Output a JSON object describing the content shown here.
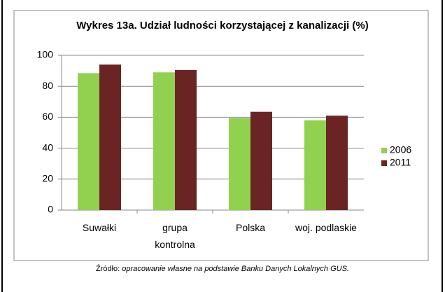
{
  "chart_data": {
    "type": "bar",
    "title": "Wykres 13a. Udział ludności korzystającej z kanalizacji (%)",
    "categories": [
      "Suwałki",
      "grupa kontrolna",
      "Polska",
      "woj. podlaskie"
    ],
    "series": [
      {
        "name": "2006",
        "color": "#92d050",
        "values": [
          88.5,
          89,
          59.5,
          58
        ]
      },
      {
        "name": "2011",
        "color": "#6b2424",
        "values": [
          94,
          90.5,
          63.5,
          61
        ]
      }
    ],
    "ylim": [
      0,
      100
    ],
    "yticks": [
      0,
      20,
      40,
      60,
      80,
      100
    ],
    "grid": true,
    "legend": "right",
    "source_label": "Źródło:",
    "source": "opracowanie własne na podstawie Banku Danych Lokalnych GUS."
  }
}
